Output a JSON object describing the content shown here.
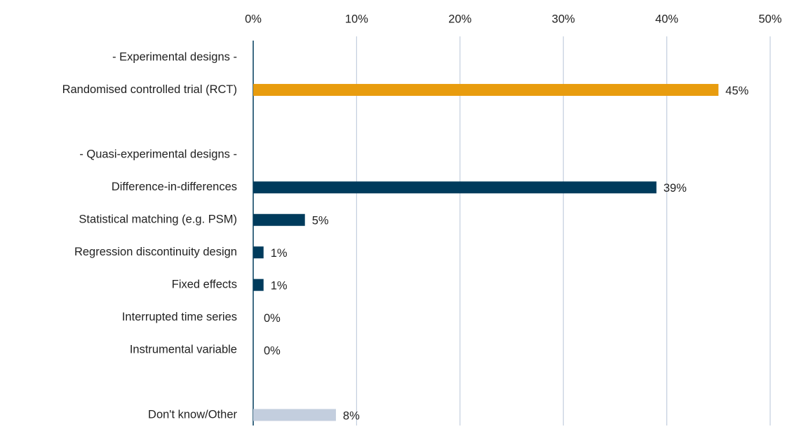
{
  "chart_data": {
    "type": "hbar",
    "categories": [
      "- Experimental designs -",
      "Randomised controlled trial (RCT)",
      null,
      "- Quasi-experimental designs -",
      "Difference-in-differences",
      "Statistical matching (e.g. PSM)",
      "Regression discontinuity design",
      "Fixed effects",
      "Interrupted time series",
      "Instrumental variable",
      null,
      "Don't know/Other"
    ],
    "values": [
      null,
      45,
      null,
      null,
      39,
      5,
      1,
      1,
      0,
      0,
      null,
      8
    ],
    "value_labels": [
      null,
      "45%",
      null,
      null,
      "39%",
      "5%",
      "1%",
      "1%",
      "0%",
      "0%",
      null,
      "8%"
    ],
    "colors": [
      null,
      "#e89c0e",
      null,
      null,
      "#003b5c",
      "#003b5c",
      "#003b5c",
      "#003b5c",
      "#003b5c",
      "#003b5c",
      null,
      "#c3cede"
    ],
    "xlim": [
      0,
      50
    ],
    "xticks": [
      {
        "value": 0,
        "label": "0%"
      },
      {
        "value": 10,
        "label": "10%"
      },
      {
        "value": 20,
        "label": "20%"
      },
      {
        "value": 30,
        "label": "30%"
      },
      {
        "value": 40,
        "label": "40%"
      },
      {
        "value": 50,
        "label": "50%"
      }
    ],
    "grid": true
  }
}
